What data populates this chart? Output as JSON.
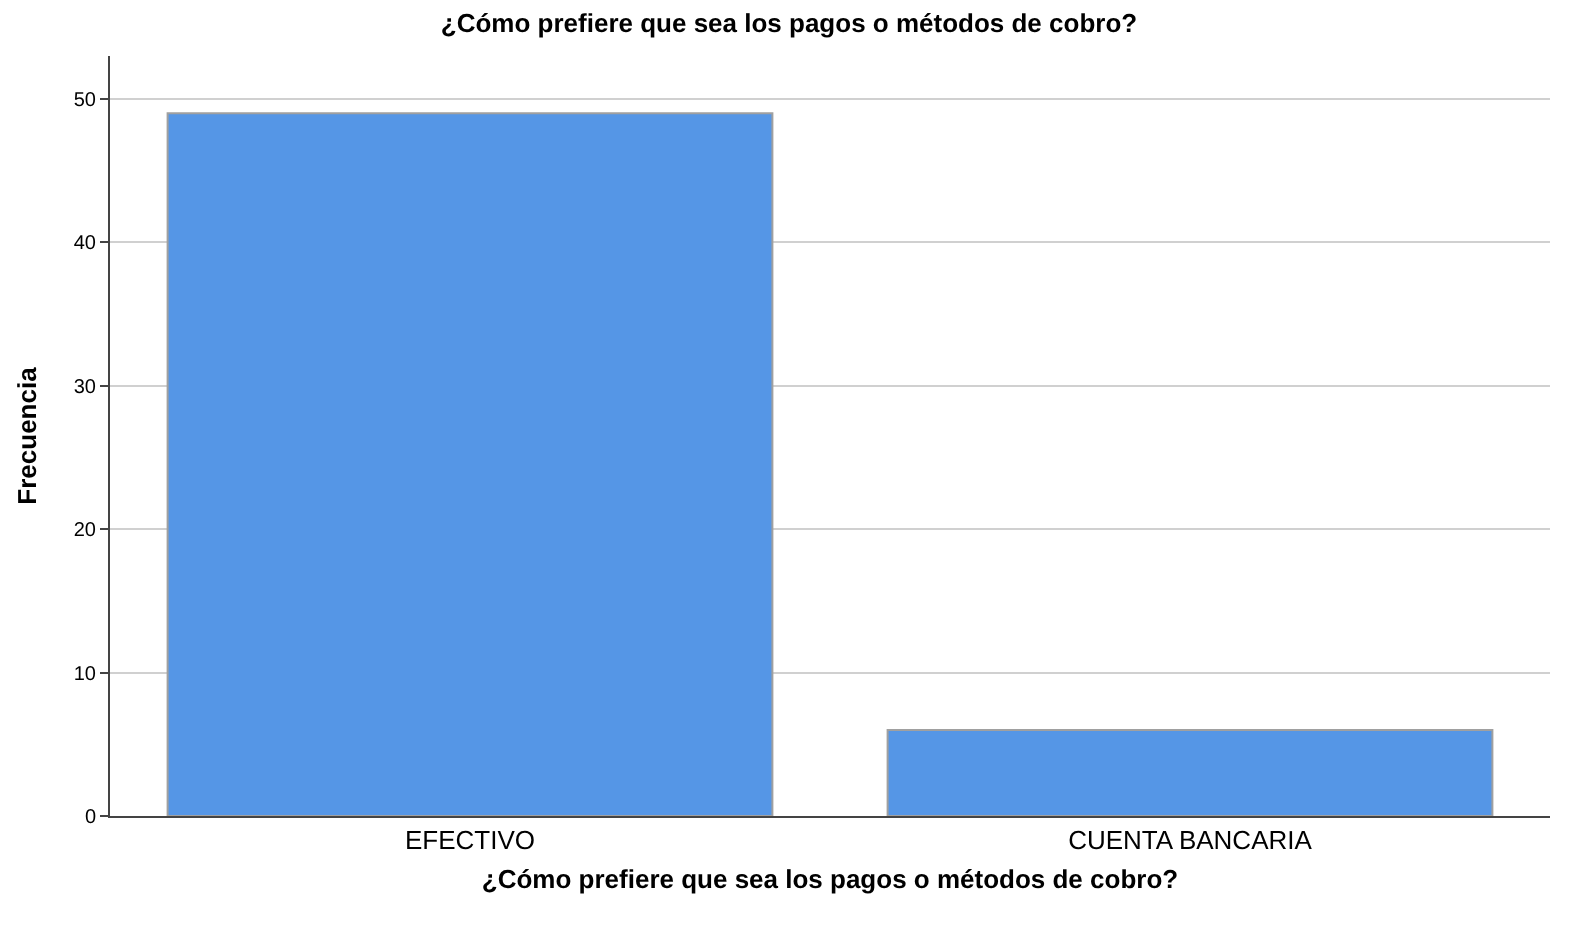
{
  "chart_data": {
    "type": "bar",
    "title": "¿Cómo prefiere que sea los pagos o métodos de cobro?",
    "xlabel": "¿Cómo prefiere que sea los pagos o métodos de cobro?",
    "ylabel": "Frecuencia",
    "categories": [
      "EFECTIVO",
      "CUENTA BANCARIA"
    ],
    "values": [
      49,
      6
    ],
    "color": "#5596e6",
    "ylim": [
      0,
      53
    ],
    "yticks": [
      0,
      10,
      20,
      30,
      40,
      50
    ],
    "grid": "y"
  }
}
